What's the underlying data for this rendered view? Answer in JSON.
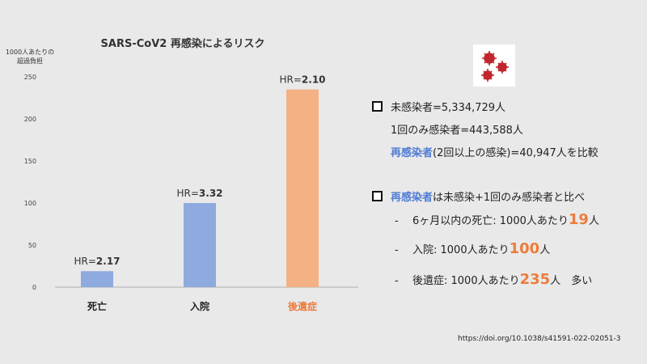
{
  "chart_data": {
    "type": "bar",
    "title": "SARS-CoV2 再感染によるリスク",
    "ylabel_line1": "1000人あたりの",
    "ylabel_line2": "超過負担",
    "ylim": [
      0,
      250
    ],
    "yticks": [
      0,
      50,
      100,
      150,
      200,
      250
    ],
    "categories": [
      "死亡",
      "入院",
      "後遺症"
    ],
    "values": [
      19,
      100,
      235
    ],
    "hr_prefix": "HR=",
    "hr_values": [
      "2.17",
      "3.32",
      "2.10"
    ],
    "colors": [
      "#8eaadf",
      "#8eaadf",
      "#f4b183"
    ],
    "category_colors": [
      "#222222",
      "#222222",
      "#ec7d3b"
    ],
    "grid": false
  },
  "panel": {
    "line1": "未感染者=5,334,729人",
    "line2": "1回のみ感染者=443,588人",
    "line3_blue": "再感染者",
    "line3_rest": "(2回以上の感染)=40,947人を比較",
    "line4_blue": "再感染者",
    "line4_rest": "は未感染+1回のみ感染者と比べ",
    "bullets": [
      {
        "dash": "-",
        "pre": "6ヶ月以内の死亡: 1000人あたり",
        "num": "19",
        "post": "人"
      },
      {
        "dash": "-",
        "pre": "入院: 1000人あたり",
        "num": "100",
        "post": "人"
      },
      {
        "dash": "-",
        "pre": "後遺症: 1000人あたり",
        "num": "235",
        "post": "人　多い"
      }
    ]
  },
  "footer": {
    "doi": "https://doi.org/10.1038/s41591-022-02051-3"
  },
  "icons": {
    "virus": "virus-icon",
    "bullet": "square-bullet-icon"
  }
}
